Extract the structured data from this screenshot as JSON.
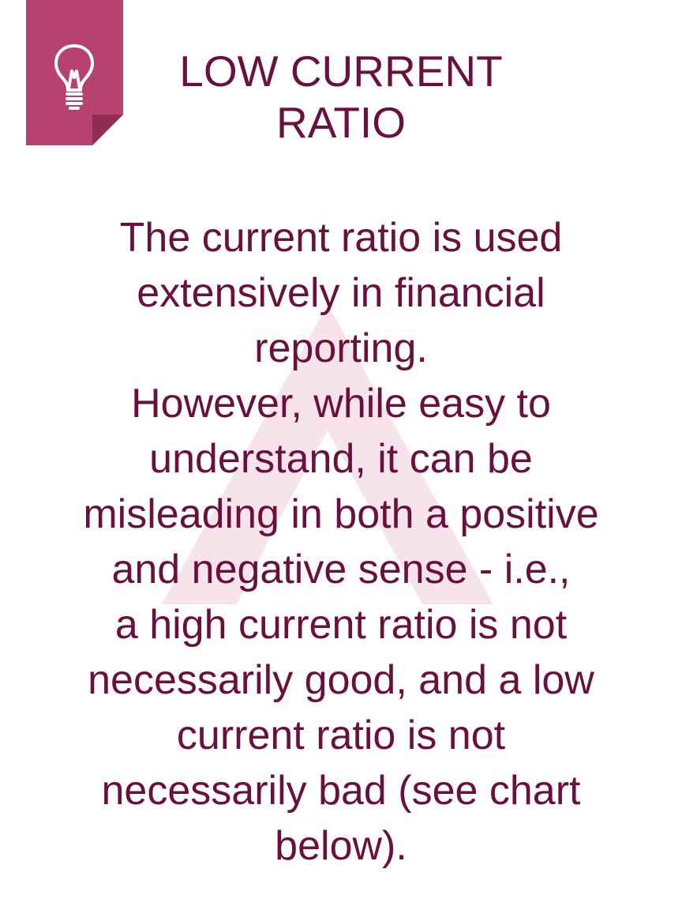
{
  "colors": {
    "text": "#6a0f3e",
    "accent": "#b5426f",
    "watermark": "#f7e3ea"
  },
  "icons": {
    "corner": "lightbulb-icon",
    "background": "logo-watermark"
  },
  "title": {
    "lines": [
      "LOW CURRENT",
      "RATIO"
    ]
  },
  "body": {
    "lines": [
      "The current ratio is used",
      "extensively in financial",
      "reporting.",
      "However, while easy to",
      "understand, it can be",
      "misleading in both a positive",
      "and negative sense - i.e.,",
      "a high current ratio is not",
      "necessarily good, and a low",
      "current ratio is not",
      "necessarily bad (see chart",
      "below)."
    ]
  }
}
